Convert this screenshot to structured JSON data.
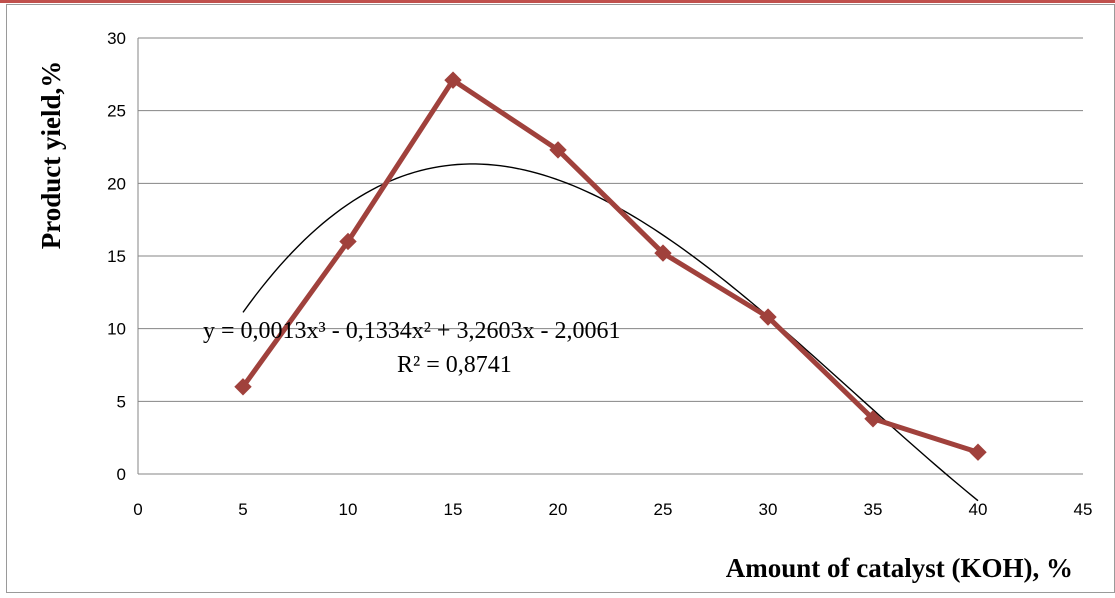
{
  "chart_data": {
    "type": "line",
    "x": [
      5,
      10,
      15,
      20,
      25,
      30,
      35,
      40
    ],
    "series": [
      {
        "values": [
          6.0,
          16.0,
          27.1,
          22.3,
          15.2,
          10.8,
          3.8,
          1.5
        ],
        "color": "#a0413c",
        "marker": "diamond"
      }
    ],
    "trendline": {
      "type": "polynomial",
      "order": 3,
      "coefficients": [
        0.0013,
        -0.1334,
        3.2603,
        -2.0061
      ],
      "x_range": [
        5,
        40
      ],
      "color": "#000000"
    },
    "annotation": {
      "equation": "y = 0,0013x³ - 0,1334x² + 3,2603x - 2,0061",
      "r_squared": "R² = 0,8741"
    },
    "xlabel": "Amount of catalyst (KOH), %",
    "ylabel": "Product yield,%",
    "xlim": [
      0,
      45
    ],
    "ylim": [
      0,
      30
    ],
    "xticks": [
      "0",
      "5",
      "10",
      "15",
      "20",
      "25",
      "30",
      "35",
      "40",
      "45"
    ],
    "yticks": [
      "0",
      "5",
      "10",
      "15",
      "20",
      "25",
      "30"
    ],
    "grid": "horizontal",
    "legend": "none",
    "colors": {
      "frame_accent": "#c0504d",
      "gridline": "#858585"
    }
  }
}
